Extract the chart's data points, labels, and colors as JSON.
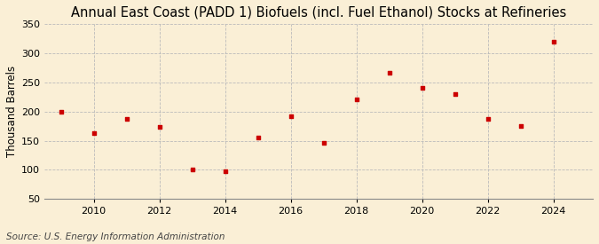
{
  "title": "Annual East Coast (PADD 1) Biofuels (incl. Fuel Ethanol) Stocks at Refineries",
  "ylabel": "Thousand Barrels",
  "source": "Source: U.S. Energy Information Administration",
  "years": [
    2009,
    2010,
    2011,
    2012,
    2013,
    2014,
    2015,
    2016,
    2017,
    2018,
    2019,
    2020,
    2021,
    2022,
    2023,
    2024
  ],
  "values": [
    200,
    163,
    188,
    174,
    100,
    97,
    156,
    192,
    146,
    221,
    266,
    241,
    230,
    188,
    176,
    320
  ],
  "marker_color": "#cc0000",
  "bg_color": "#faefd6",
  "plot_bg_color": "#faefd6",
  "grid_color": "#bbbbbb",
  "ylim": [
    50,
    350
  ],
  "yticks": [
    50,
    100,
    150,
    200,
    250,
    300,
    350
  ],
  "xticks": [
    2010,
    2012,
    2014,
    2016,
    2018,
    2020,
    2022,
    2024
  ],
  "xlim": [
    2008.5,
    2025.2
  ],
  "title_fontsize": 10.5,
  "label_fontsize": 8.5,
  "tick_fontsize": 8,
  "source_fontsize": 7.5
}
